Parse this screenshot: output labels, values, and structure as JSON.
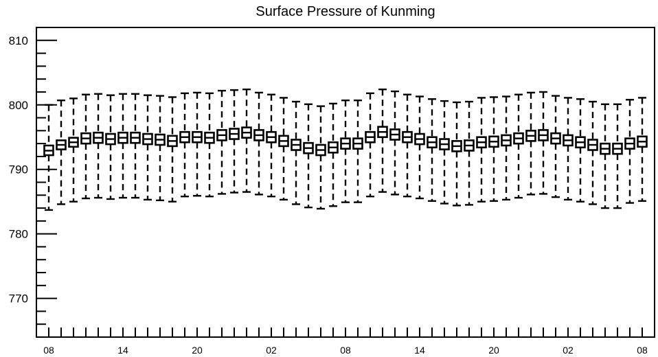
{
  "chart_data": {
    "type": "box",
    "title": "Surface Pressure of Kunming",
    "xlabel": "",
    "ylabel": "",
    "ylim": [
      764,
      812
    ],
    "yticks": [
      770,
      780,
      790,
      800,
      810
    ],
    "xtick_labels": [
      "08",
      "14",
      "20",
      "02",
      "08",
      "14",
      "20",
      "02",
      "08"
    ],
    "xtick_hours": [
      0,
      6,
      12,
      18,
      24,
      30,
      36,
      42,
      48
    ],
    "x_hours": [
      0,
      1,
      2,
      3,
      4,
      5,
      6,
      7,
      8,
      9,
      10,
      11,
      12,
      13,
      14,
      15,
      16,
      17,
      18,
      19,
      20,
      21,
      22,
      23,
      24,
      25,
      26,
      27,
      28,
      29,
      30,
      31,
      32,
      33,
      34,
      35,
      36,
      37,
      38,
      39,
      40,
      41,
      42,
      43,
      44,
      45,
      46,
      47,
      48
    ],
    "median": [
      792.9,
      793.8,
      794.2,
      794.8,
      794.9,
      794.7,
      794.9,
      794.9,
      794.7,
      794.6,
      794.4,
      795.0,
      795.0,
      794.9,
      795.3,
      795.5,
      795.7,
      795.3,
      795.0,
      794.4,
      793.8,
      793.3,
      793.0,
      793.4,
      794.0,
      794.0,
      795.0,
      795.8,
      795.4,
      795.0,
      794.7,
      794.2,
      793.9,
      793.6,
      793.7,
      794.2,
      794.3,
      794.5,
      794.8,
      795.2,
      795.3,
      794.8,
      794.5,
      794.2,
      793.8,
      793.2,
      793.2,
      794.0,
      794.3
    ],
    "q1": [
      792.2,
      793.1,
      793.5,
      794.0,
      794.1,
      793.9,
      794.1,
      794.1,
      793.9,
      793.8,
      793.6,
      794.2,
      794.2,
      794.1,
      794.5,
      794.7,
      794.9,
      794.5,
      794.2,
      793.6,
      793.0,
      792.5,
      792.2,
      792.6,
      793.2,
      793.2,
      794.2,
      795.0,
      794.6,
      794.2,
      793.9,
      793.4,
      793.1,
      792.8,
      792.9,
      793.4,
      793.5,
      793.7,
      794.0,
      794.4,
      794.5,
      794.0,
      793.7,
      793.4,
      793.0,
      792.4,
      792.4,
      793.2,
      793.5
    ],
    "q3": [
      793.7,
      794.5,
      794.9,
      795.6,
      795.7,
      795.5,
      795.7,
      795.7,
      795.5,
      795.4,
      795.2,
      795.8,
      795.8,
      795.7,
      796.1,
      796.3,
      796.5,
      796.1,
      795.8,
      795.2,
      794.6,
      794.1,
      793.8,
      794.2,
      794.8,
      794.8,
      795.8,
      796.6,
      796.2,
      795.8,
      795.5,
      795.0,
      794.7,
      794.4,
      794.5,
      795.0,
      795.1,
      795.3,
      795.6,
      796.0,
      796.1,
      795.6,
      795.3,
      795.0,
      794.6,
      794.0,
      794.0,
      794.8,
      795.1
    ],
    "whisker_high": [
      800.0,
      800.7,
      801.0,
      801.6,
      801.7,
      801.5,
      801.7,
      801.7,
      801.5,
      801.4,
      801.2,
      801.8,
      801.9,
      801.8,
      802.2,
      802.3,
      802.4,
      801.9,
      801.6,
      801.1,
      800.5,
      800.1,
      799.8,
      800.2,
      800.7,
      800.7,
      801.8,
      802.4,
      802.1,
      801.6,
      801.3,
      800.9,
      800.6,
      800.4,
      800.5,
      801.1,
      801.2,
      801.3,
      801.6,
      801.9,
      802.0,
      801.4,
      801.1,
      800.9,
      800.5,
      800.1,
      800.1,
      800.8,
      801.1
    ],
    "whisker_low": [
      783.7,
      784.6,
      785.0,
      785.5,
      785.6,
      785.4,
      785.6,
      785.6,
      785.3,
      785.2,
      785.0,
      785.8,
      785.9,
      785.8,
      786.2,
      786.4,
      786.5,
      786.1,
      785.8,
      785.3,
      784.6,
      784.1,
      783.9,
      784.3,
      784.9,
      784.9,
      785.8,
      786.5,
      786.1,
      785.8,
      785.5,
      785.1,
      784.7,
      784.4,
      784.5,
      785.0,
      785.1,
      785.3,
      785.6,
      786.1,
      786.2,
      785.7,
      785.3,
      785.0,
      784.6,
      784.0,
      784.0,
      784.8,
      785.1
    ]
  }
}
